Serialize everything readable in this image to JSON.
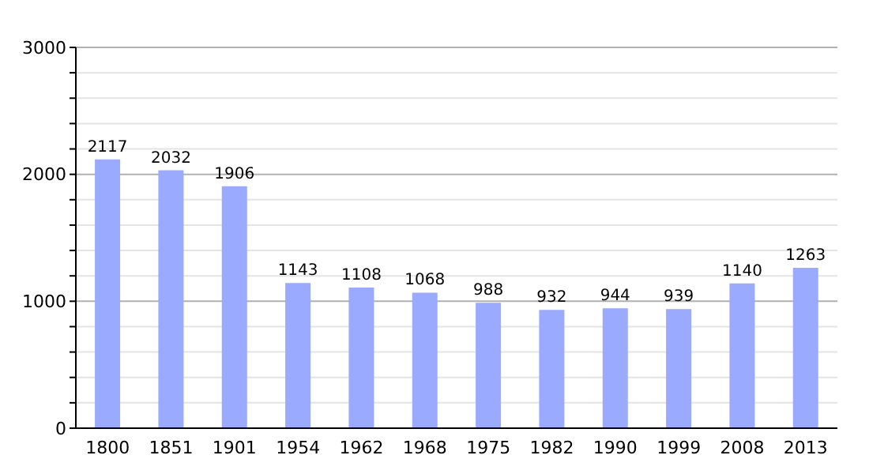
{
  "chart_data": {
    "type": "bar",
    "categories": [
      "1800",
      "1851",
      "1901",
      "1954",
      "1962",
      "1968",
      "1975",
      "1982",
      "1990",
      "1999",
      "2008",
      "2013"
    ],
    "values": [
      2117,
      2032,
      1906,
      1143,
      1108,
      1068,
      988,
      932,
      944,
      939,
      1140,
      1263
    ],
    "color": "#99aaff",
    "ylim": [
      0,
      3000
    ],
    "yticks": [
      0,
      {
        "value": 200,
        "label": null
      },
      {
        "value": 400,
        "label": null
      },
      {
        "value": 600,
        "label": null
      },
      {
        "value": 800,
        "label": null
      },
      1000,
      {
        "value": 1200,
        "label": null
      },
      {
        "value": 1400,
        "label": null
      },
      {
        "value": 1600,
        "label": null
      },
      {
        "value": 1800,
        "label": null
      },
      2000,
      {
        "value": 2200,
        "label": null
      },
      {
        "value": 2400,
        "label": null
      },
      {
        "value": 2600,
        "label": null
      },
      {
        "value": 2800,
        "label": null
      },
      3000
    ],
    "grid": "y",
    "data_labels": true
  }
}
